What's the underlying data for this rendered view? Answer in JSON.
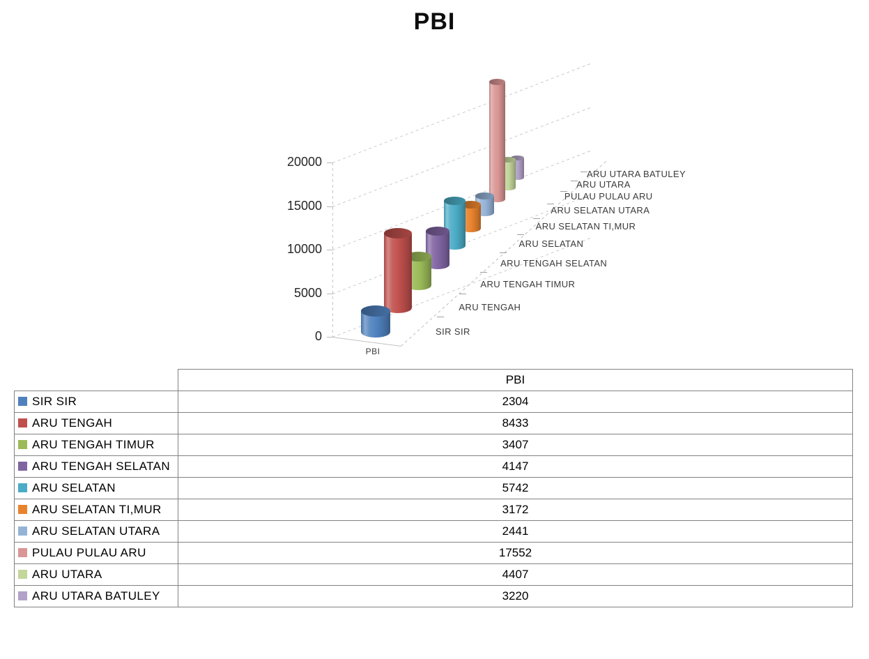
{
  "title": {
    "text": "PBI"
  },
  "chart_data": {
    "type": "bar",
    "subtype": "3d-cylinder",
    "series_name": "PBI",
    "floor_label": "PBI",
    "categories": [
      "SIR SIR",
      "ARU TENGAH",
      "ARU TENGAH TIMUR",
      "ARU TENGAH SELATAN",
      "ARU SELATAN",
      "ARU SELATAN TI,MUR",
      "ARU SELATAN UTARA",
      "PULAU PULAU ARU",
      "ARU UTARA",
      "ARU UTARA BATULEY"
    ],
    "values": [
      2304,
      8433,
      3407,
      4147,
      5742,
      3172,
      2441,
      17552,
      4407,
      3220
    ],
    "colors": [
      "#4F81BD",
      "#C0504D",
      "#9BBB59",
      "#8064A2",
      "#4BACC6",
      "#E8832D",
      "#95B3D7",
      "#D99694",
      "#C3D69B",
      "#B2A2C7"
    ],
    "value_axis": {
      "min": 0,
      "max": 20000,
      "step": 5000,
      "tick_labels": [
        "0",
        "5000",
        "10000",
        "15000",
        "20000"
      ]
    },
    "grid": "dashed",
    "view": "3d-perspective",
    "legend_position": "table-rows"
  },
  "table": {
    "value_column_header": "PBI"
  }
}
